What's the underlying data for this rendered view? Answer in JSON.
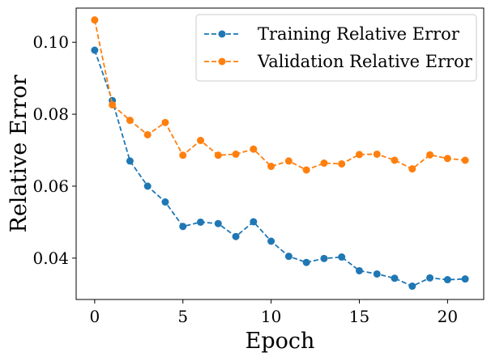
{
  "chart_data": {
    "type": "line",
    "title": "",
    "xlabel": "Epoch",
    "ylabel": "Relative Error",
    "xlim": [
      -1.05,
      22.05
    ],
    "ylim": [
      0.0285,
      0.1095
    ],
    "xticks": [
      0,
      5,
      10,
      15,
      20
    ],
    "xtick_labels": [
      "0",
      "5",
      "10",
      "15",
      "20"
    ],
    "yticks": [
      0.04,
      0.06,
      0.08,
      0.1
    ],
    "ytick_labels": [
      "0.04",
      "0.06",
      "0.08",
      "0.10"
    ],
    "grid": false,
    "legend_position": "top-right",
    "x": [
      0,
      1,
      2,
      3,
      4,
      5,
      6,
      7,
      8,
      9,
      10,
      11,
      12,
      13,
      14,
      15,
      16,
      17,
      18,
      19,
      20,
      21
    ],
    "series": [
      {
        "name": "Training Relative Error",
        "color": "#1f77b4",
        "line_style": "dashed",
        "marker": "circle",
        "values": [
          0.0978,
          0.0838,
          0.067,
          0.06,
          0.0556,
          0.0488,
          0.05,
          0.0496,
          0.046,
          0.0501,
          0.0447,
          0.0405,
          0.0388,
          0.0399,
          0.0403,
          0.0365,
          0.0356,
          0.0344,
          0.0322,
          0.0345,
          0.034,
          0.0342
        ]
      },
      {
        "name": "Validation Relative Error",
        "color": "#ff7f0e",
        "line_style": "dashed",
        "marker": "circle",
        "values": [
          0.1062,
          0.0826,
          0.0783,
          0.0743,
          0.0777,
          0.0686,
          0.0727,
          0.0686,
          0.0689,
          0.0703,
          0.0655,
          0.067,
          0.0645,
          0.0664,
          0.0662,
          0.0688,
          0.0689,
          0.0672,
          0.0648,
          0.0687,
          0.0677,
          0.0672
        ]
      }
    ]
  }
}
